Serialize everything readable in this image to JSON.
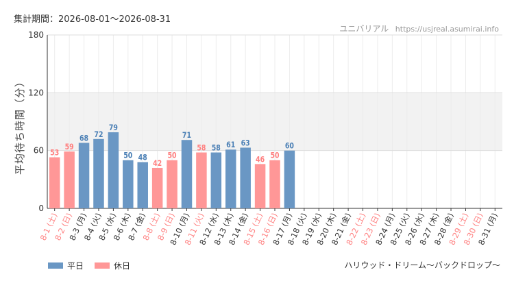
{
  "header": {
    "period_label": "集計期間：2026-08-01〜2026-08-31",
    "brand": "ユニバリアル",
    "site_url": "https://usjreal.asumirai.info"
  },
  "footer": {
    "attraction": "ハリウッド・ドリーム〜バックドロップ〜"
  },
  "chart_data": {
    "type": "bar",
    "ylabel": "平均待ち時間（分）",
    "ylim": [
      0,
      180
    ],
    "yticks": [
      0,
      60,
      120,
      180
    ],
    "shaded_band": [
      60,
      120
    ],
    "legend": [
      {
        "name": "平日",
        "color": "#6a97c4"
      },
      {
        "name": "休日",
        "color": "#ff9797"
      }
    ],
    "categories": [
      "8-1 (土)",
      "8-2 (日)",
      "8-3 (月)",
      "8-4 (火)",
      "8-5 (水)",
      "8-6 (木)",
      "8-7 (金)",
      "8-8 (土)",
      "8-9 (日)",
      "8-10 (月)",
      "8-11 (火)",
      "8-12 (水)",
      "8-13 (木)",
      "8-14 (金)",
      "8-15 (土)",
      "8-16 (日)",
      "8-17 (月)",
      "8-18 (火)",
      "8-19 (水)",
      "8-20 (木)",
      "8-21 (金)",
      "8-22 (土)",
      "8-23 (日)",
      "8-24 (月)",
      "8-25 (火)",
      "8-26 (水)",
      "8-27 (木)",
      "8-28 (金)",
      "8-29 (土)",
      "8-30 (日)",
      "8-31 (月)"
    ],
    "holiday": [
      true,
      true,
      false,
      false,
      false,
      false,
      false,
      true,
      true,
      false,
      true,
      false,
      false,
      false,
      true,
      true,
      false,
      false,
      false,
      false,
      false,
      true,
      true,
      false,
      false,
      false,
      false,
      false,
      true,
      true,
      false
    ],
    "values": [
      53,
      59,
      68,
      72,
      79,
      50,
      48,
      42,
      50,
      71,
      58,
      58,
      61,
      63,
      46,
      50,
      60,
      null,
      null,
      null,
      null,
      null,
      null,
      null,
      null,
      null,
      null,
      null,
      null,
      null,
      null
    ],
    "colors": {
      "weekday": "#6a97c4",
      "holiday": "#ff9797",
      "weekday_label": "#4a7fb5",
      "holiday_label": "#ff8080",
      "weekday_tick": "#333333",
      "holiday_tick": "#ff8080"
    }
  }
}
